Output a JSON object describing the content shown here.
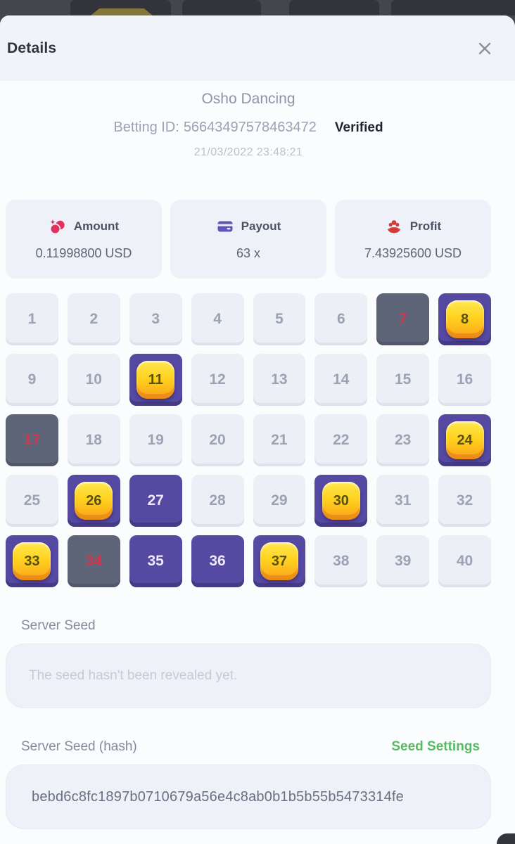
{
  "modal": {
    "title": "Details"
  },
  "bet": {
    "game_name": "Osho Dancing",
    "betting_id_label": "Betting ID:",
    "betting_id": "56643497578463472",
    "verified_badge": "Verified",
    "timestamp": "21/03/2022 23:48:21"
  },
  "stats": {
    "amount": {
      "label": "Amount",
      "value": "0.11998800 USD"
    },
    "payout": {
      "label": "Payout",
      "value": "63 x"
    },
    "profit": {
      "label": "Profit",
      "value": "7.43925600 USD"
    }
  },
  "grid": {
    "columns": 8,
    "cells": [
      {
        "n": 1,
        "state": "open"
      },
      {
        "n": 2,
        "state": "open"
      },
      {
        "n": 3,
        "state": "open"
      },
      {
        "n": 4,
        "state": "open"
      },
      {
        "n": 5,
        "state": "open"
      },
      {
        "n": 6,
        "state": "open"
      },
      {
        "n": 7,
        "state": "drawn"
      },
      {
        "n": 8,
        "state": "hit"
      },
      {
        "n": 9,
        "state": "open"
      },
      {
        "n": 10,
        "state": "open"
      },
      {
        "n": 11,
        "state": "hit"
      },
      {
        "n": 12,
        "state": "open"
      },
      {
        "n": 13,
        "state": "open"
      },
      {
        "n": 14,
        "state": "open"
      },
      {
        "n": 15,
        "state": "open"
      },
      {
        "n": 16,
        "state": "open"
      },
      {
        "n": 17,
        "state": "drawn"
      },
      {
        "n": 18,
        "state": "open"
      },
      {
        "n": 19,
        "state": "open"
      },
      {
        "n": 20,
        "state": "open"
      },
      {
        "n": 21,
        "state": "open"
      },
      {
        "n": 22,
        "state": "open"
      },
      {
        "n": 23,
        "state": "open"
      },
      {
        "n": 24,
        "state": "hit"
      },
      {
        "n": 25,
        "state": "open"
      },
      {
        "n": 26,
        "state": "hit"
      },
      {
        "n": 27,
        "state": "picked"
      },
      {
        "n": 28,
        "state": "open"
      },
      {
        "n": 29,
        "state": "open"
      },
      {
        "n": 30,
        "state": "hit"
      },
      {
        "n": 31,
        "state": "open"
      },
      {
        "n": 32,
        "state": "open"
      },
      {
        "n": 33,
        "state": "hit"
      },
      {
        "n": 34,
        "state": "drawn"
      },
      {
        "n": 35,
        "state": "picked"
      },
      {
        "n": 36,
        "state": "picked"
      },
      {
        "n": 37,
        "state": "hit"
      },
      {
        "n": 38,
        "state": "open"
      },
      {
        "n": 39,
        "state": "open"
      },
      {
        "n": 40,
        "state": "open"
      }
    ]
  },
  "server_seed": {
    "label": "Server Seed",
    "placeholder": "The seed hasn't been revealed yet.",
    "value": ""
  },
  "server_seed_hash": {
    "label": "Server Seed (hash)",
    "settings_link": "Seed Settings",
    "value": "bebd6c8fc1897b0710679a56e4c8ab0b1b5b55b5473314fe"
  },
  "colors": {
    "hit_purple": "#5549a2",
    "gem_gold": "#ffd21f",
    "drawn_slate": "#5e6578",
    "drawn_number_red": "#d7344a",
    "seed_settings_green": "#58bb63",
    "amount_icon_pink": "#e0325f",
    "payout_icon_purple": "#6355b8",
    "profit_icon_red": "#d43a3a"
  }
}
